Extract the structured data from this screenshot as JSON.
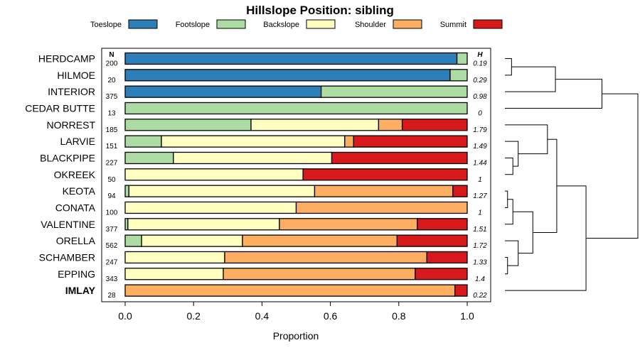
{
  "chart_data": {
    "type": "bar",
    "stacked": true,
    "orientation": "horizontal",
    "title": "Hillslope Position: sibling",
    "xlabel": "Proportion",
    "ylabel": "",
    "xlim": [
      0,
      1
    ],
    "xticks": [
      0.0,
      0.2,
      0.4,
      0.6,
      0.8,
      1.0
    ],
    "xtick_labels": [
      "0.0",
      "0.2",
      "0.4",
      "0.6",
      "0.8",
      "1.0"
    ],
    "n_header": "N",
    "h_header": "H",
    "legend_placement": "top",
    "series": [
      {
        "name": "Toeslope",
        "color": "#2c7fb8"
      },
      {
        "name": "Footslope",
        "color": "#acdba4"
      },
      {
        "name": "Backslope",
        "color": "#ffffbf"
      },
      {
        "name": "Shoulder",
        "color": "#fdae61"
      },
      {
        "name": "Summit",
        "color": "#d7191c"
      }
    ],
    "rows": [
      {
        "label": "HERDCAMP",
        "n": "200",
        "h": "0.19",
        "bold": false,
        "values": [
          0.97,
          0.03,
          0,
          0,
          0
        ]
      },
      {
        "label": "HILMOE",
        "n": "20",
        "h": "0.29",
        "bold": false,
        "values": [
          0.95,
          0.05,
          0,
          0,
          0
        ]
      },
      {
        "label": "INTERIOR",
        "n": "375",
        "h": "0.98",
        "bold": false,
        "values": [
          0.573,
          0.427,
          0,
          0,
          0
        ]
      },
      {
        "label": "CEDAR BUTTE",
        "n": "13",
        "h": "0",
        "bold": false,
        "values": [
          0,
          1.0,
          0,
          0,
          0
        ]
      },
      {
        "label": "NORREST",
        "n": "185",
        "h": "1.79",
        "bold": false,
        "values": [
          0,
          0.368,
          0.373,
          0.069,
          0.19
        ]
      },
      {
        "label": "LARVIE",
        "n": "151",
        "h": "1.49",
        "bold": false,
        "values": [
          0,
          0.106,
          0.536,
          0.026,
          0.332
        ]
      },
      {
        "label": "BLACKPIPE",
        "n": "227",
        "h": "1.44",
        "bold": false,
        "values": [
          0,
          0.141,
          0.463,
          0,
          0.396
        ]
      },
      {
        "label": "OKREEK",
        "n": "50",
        "h": "1",
        "bold": false,
        "values": [
          0,
          0,
          0.52,
          0,
          0.48
        ]
      },
      {
        "label": "KEOTA",
        "n": "94",
        "h": "1.27",
        "bold": false,
        "values": [
          0,
          0.011,
          0.543,
          0.404,
          0.042
        ]
      },
      {
        "label": "CONATA",
        "n": "100",
        "h": "1",
        "bold": false,
        "values": [
          0,
          0,
          0.5,
          0.5,
          0
        ]
      },
      {
        "label": "VALENTINE",
        "n": "377",
        "h": "1.51",
        "bold": false,
        "values": [
          0,
          0.008,
          0.443,
          0.403,
          0.146
        ]
      },
      {
        "label": "ORELLA",
        "n": "562",
        "h": "1.72",
        "bold": false,
        "values": [
          0,
          0.048,
          0.295,
          0.452,
          0.205
        ]
      },
      {
        "label": "SCHAMBER",
        "n": "247",
        "h": "1.33",
        "bold": false,
        "values": [
          0,
          0,
          0.291,
          0.591,
          0.118
        ]
      },
      {
        "label": "EPPING",
        "n": "343",
        "h": "1.4",
        "bold": false,
        "values": [
          0,
          0,
          0.287,
          0.561,
          0.152
        ]
      },
      {
        "label": "IMLAY",
        "n": "28",
        "h": "0.22",
        "bold": true,
        "values": [
          0,
          0,
          0,
          0.964,
          0.036
        ]
      }
    ],
    "dendrogram": {
      "note": "hierarchical clustering of rows; merge heights in relative units",
      "merges": [
        {
          "id": "c1",
          "a": 0,
          "b": 1,
          "height": 0.05
        },
        {
          "id": "c2",
          "a": "c1",
          "b": 2,
          "height": 0.38
        },
        {
          "id": "c3",
          "a": "c2",
          "b": 3,
          "height": 0.73
        },
        {
          "id": "c4",
          "a": 6,
          "b": 7,
          "height": 0.06
        },
        {
          "id": "c5",
          "a": 5,
          "b": "c4",
          "height": 0.1
        },
        {
          "id": "c6",
          "a": 4,
          "b": "c5",
          "height": 0.32
        },
        {
          "id": "c7",
          "a": 8,
          "b": 9,
          "height": 0.02
        },
        {
          "id": "c8",
          "a": "c7",
          "b": 10,
          "height": 0.06
        },
        {
          "id": "c9",
          "a": 12,
          "b": 13,
          "height": 0.02
        },
        {
          "id": "c10",
          "a": 11,
          "b": "c9",
          "height": 0.1
        },
        {
          "id": "c11",
          "a": "c8",
          "b": "c10",
          "height": 0.21
        },
        {
          "id": "c12",
          "a": "c6",
          "b": "c11",
          "height": 0.39
        },
        {
          "id": "c13",
          "a": "c12",
          "b": 14,
          "height": 0.61
        },
        {
          "id": "c14",
          "a": "c3",
          "b": "c13",
          "height": 1.0
        }
      ]
    }
  }
}
